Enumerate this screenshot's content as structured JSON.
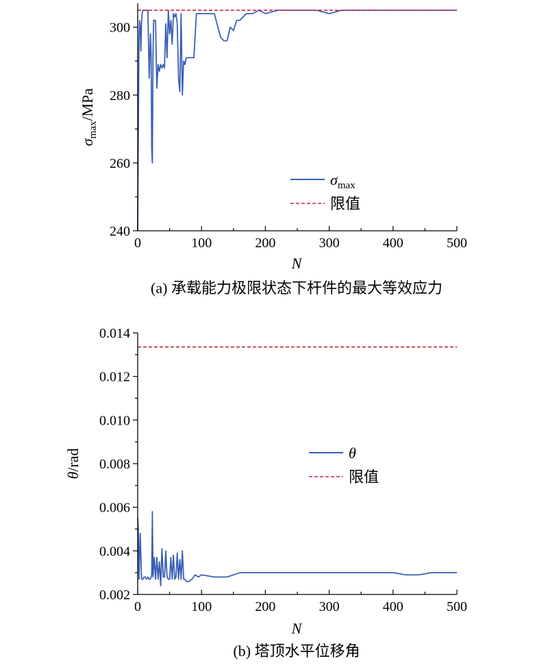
{
  "colors": {
    "series": "#3a5fb5",
    "limit": "#d02040",
    "axis": "#000000"
  },
  "chart_data": [
    {
      "type": "line",
      "caption": "(a) 承载能力极限状态下杆件的最大等效应力",
      "ylabel_sym": "σ",
      "ylabel_sub": "max",
      "ylabel_rest": "/MPa",
      "xlabel": "N",
      "xlim": [
        0,
        500
      ],
      "ylim": [
        240,
        307
      ],
      "xticks": [
        0,
        100,
        200,
        300,
        400,
        500
      ],
      "yticks": [
        240,
        260,
        280,
        300
      ],
      "legend_position": "center-right",
      "series": [
        {
          "name_sym": "σ",
          "name_sub": "max",
          "style": "solid",
          "x": [
            0,
            1,
            2,
            3,
            4,
            5,
            6,
            7,
            8,
            9,
            10,
            12,
            14,
            16,
            18,
            20,
            21,
            22,
            23,
            24,
            25,
            26,
            28,
            30,
            32,
            34,
            36,
            38,
            40,
            42,
            44,
            46,
            48,
            50,
            52,
            54,
            56,
            58,
            60,
            62,
            64,
            66,
            68,
            70,
            72,
            74,
            76,
            78,
            80,
            84,
            88,
            92,
            96,
            100,
            110,
            120,
            130,
            135,
            140,
            145,
            150,
            155,
            160,
            170,
            180,
            190,
            200,
            220,
            250,
            280,
            300,
            320,
            350,
            400,
            450,
            500
          ],
          "y": [
            240,
            268,
            296,
            302,
            300,
            293,
            301,
            304,
            305,
            305,
            305,
            305,
            305,
            305,
            285,
            298,
            292,
            264,
            260,
            292,
            302,
            302,
            302,
            282,
            289,
            287,
            289,
            288,
            289,
            288,
            301,
            291,
            305,
            298,
            302,
            295,
            304,
            303,
            304,
            301,
            285,
            281,
            304,
            280,
            290,
            289,
            291,
            291,
            291,
            291,
            291,
            304,
            304,
            304,
            304,
            304,
            297,
            296,
            296,
            300,
            299,
            302,
            302,
            304,
            304,
            305,
            304,
            305,
            305,
            305,
            304,
            305,
            305,
            305,
            305,
            305
          ]
        },
        {
          "name": "限值",
          "style": "dashed",
          "x": [
            0,
            500
          ],
          "y": [
            305,
            305
          ]
        }
      ]
    },
    {
      "type": "line",
      "caption": "(b) 塔顶水平位移角",
      "ylabel_sym": "θ",
      "ylabel_rest": "/rad",
      "xlabel": "N",
      "xlim": [
        0,
        500
      ],
      "ylim": [
        0.002,
        0.014
      ],
      "xticks": [
        0,
        100,
        200,
        300,
        400,
        500
      ],
      "yticks": [
        0.002,
        0.004,
        0.006,
        0.008,
        0.01,
        0.012,
        0.014
      ],
      "ytick_labels": [
        "0.002",
        "0.004",
        "0.006",
        "0.008",
        "0.010",
        "0.012",
        "0.014"
      ],
      "legend_position": "center-right",
      "series": [
        {
          "name_sym": "θ",
          "style": "solid",
          "x": [
            0,
            1,
            2,
            4,
            6,
            8,
            10,
            12,
            14,
            16,
            18,
            20,
            22,
            23,
            24,
            26,
            28,
            30,
            32,
            34,
            36,
            38,
            40,
            42,
            44,
            46,
            48,
            50,
            52,
            54,
            56,
            58,
            60,
            62,
            64,
            66,
            68,
            70,
            72,
            74,
            76,
            80,
            85,
            90,
            95,
            100,
            120,
            140,
            160,
            180,
            200,
            250,
            280,
            300,
            350,
            400,
            420,
            440,
            460,
            500
          ],
          "y": [
            0.0055,
            0.005,
            0.0027,
            0.0048,
            0.0027,
            0.0027,
            0.0028,
            0.0028,
            0.0027,
            0.0028,
            0.0027,
            0.0027,
            0.0029,
            0.0058,
            0.0028,
            0.0037,
            0.0027,
            0.0037,
            0.0027,
            0.0035,
            0.0024,
            0.0041,
            0.0028,
            0.0028,
            0.004,
            0.0028,
            0.0027,
            0.0027,
            0.0037,
            0.0027,
            0.0038,
            0.0027,
            0.0028,
            0.0039,
            0.0027,
            0.0036,
            0.0027,
            0.004,
            0.0027,
            0.0027,
            0.0026,
            0.0026,
            0.0027,
            0.0029,
            0.0028,
            0.0029,
            0.0028,
            0.0028,
            0.003,
            0.003,
            0.003,
            0.003,
            0.003,
            0.003,
            0.003,
            0.003,
            0.0029,
            0.0029,
            0.003,
            0.003
          ]
        },
        {
          "name": "限值",
          "style": "dashed",
          "x": [
            0,
            500
          ],
          "y": [
            0.01335,
            0.01335
          ]
        }
      ]
    }
  ]
}
